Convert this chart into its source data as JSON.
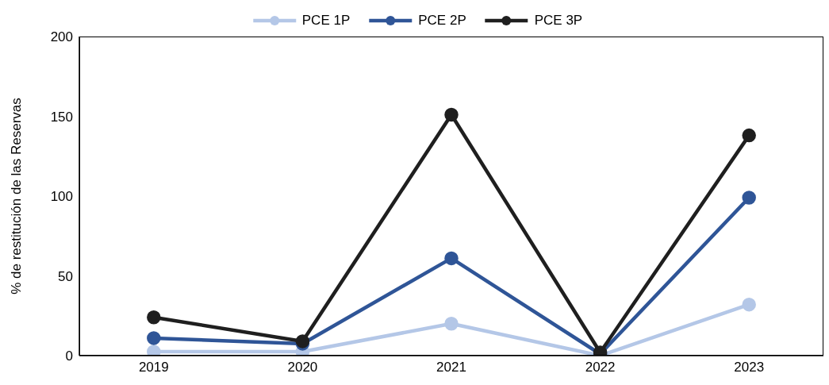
{
  "chart_data": {
    "type": "line",
    "ylabel": "% de restitución de las Reservas",
    "categories": [
      "2019",
      "2020",
      "2021",
      "2022",
      "2023"
    ],
    "series": [
      {
        "name": "PCE 1P",
        "color": "#b4c7e7",
        "values": [
          2.5,
          2.5,
          20,
          0,
          32
        ]
      },
      {
        "name": "PCE 2P",
        "color": "#2f5597",
        "values": [
          11,
          7.5,
          61,
          1,
          99
        ]
      },
      {
        "name": "PCE 3P",
        "color": "#1f1f1f",
        "values": [
          24,
          9,
          151,
          2,
          138
        ]
      }
    ],
    "ylim": [
      0,
      200
    ],
    "yticks": [
      0,
      50,
      100,
      150,
      200
    ],
    "grid": false,
    "legend": "top",
    "marker": "circle",
    "line_style": "solid"
  }
}
